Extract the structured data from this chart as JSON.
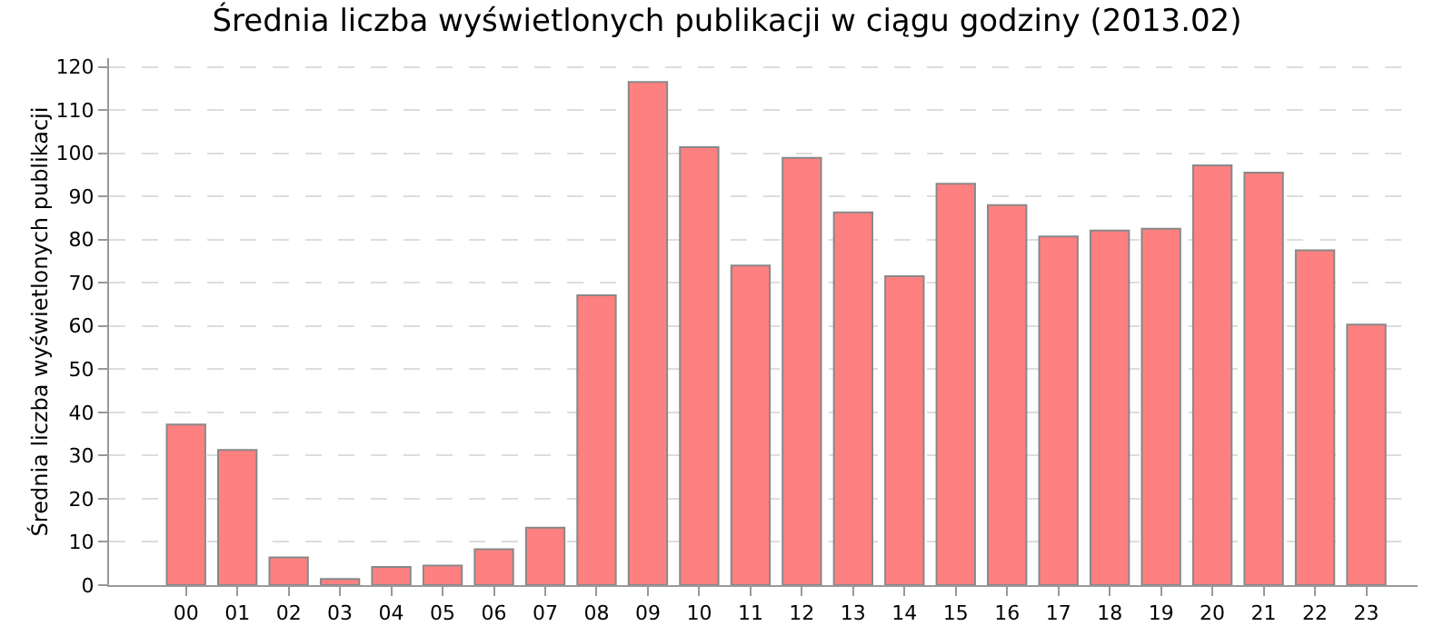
{
  "chart_data": {
    "type": "bar",
    "title": "Średnia liczba wyświetlonych publikacji w ciągu godziny (2013.02)",
    "ylabel": "Średnia liczba wyświetlonych publikacji",
    "categories": [
      "00",
      "01",
      "02",
      "03",
      "04",
      "05",
      "06",
      "07",
      "08",
      "09",
      "10",
      "11",
      "12",
      "13",
      "14",
      "15",
      "16",
      "17",
      "18",
      "19",
      "20",
      "21",
      "22",
      "23"
    ],
    "values": [
      37.2,
      31.3,
      6.4,
      1.4,
      4.2,
      4.5,
      8.3,
      13.3,
      67.1,
      116.5,
      101.4,
      74,
      98.9,
      86.3,
      71.5,
      92.9,
      88,
      80.7,
      82.1,
      82.5,
      97.2,
      95.5,
      77.5,
      60.3
    ],
    "color": "#ff8080",
    "ylim": [
      0,
      122
    ],
    "yticks": [
      0,
      10,
      20,
      30,
      40,
      50,
      60,
      70,
      80,
      90,
      100,
      110,
      120
    ],
    "grid": "y",
    "legend": false
  }
}
